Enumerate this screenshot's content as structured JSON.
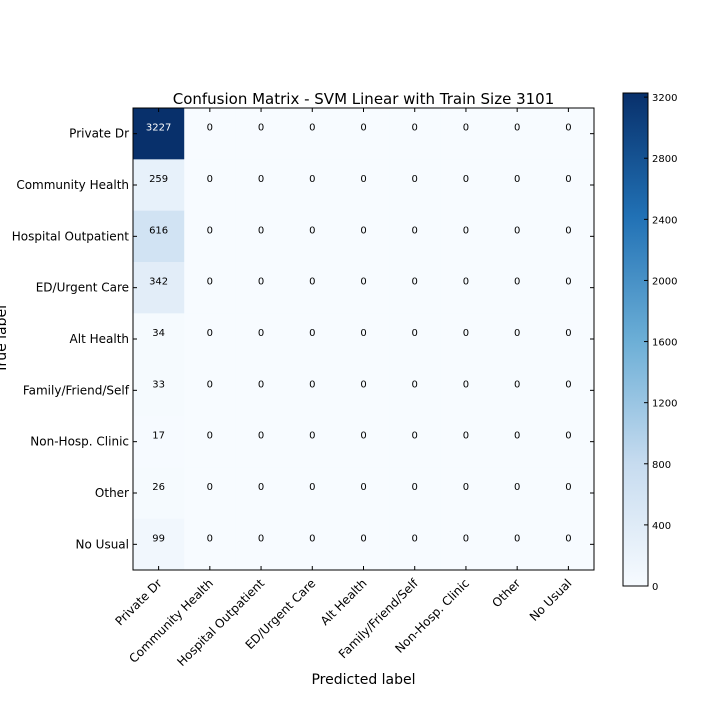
{
  "chart_data": {
    "type": "heatmap",
    "title": "Confusion Matrix - SVM Linear with Train Size 3101",
    "xlabel": "Predicted label",
    "ylabel": "True label",
    "x_categories": [
      "Private Dr",
      "Community Health",
      "Hospital Outpatient",
      "ED/Urgent Care",
      "Alt Health",
      "Family/Friend/Self",
      "Non-Hosp. Clinic",
      "Other",
      "No Usual"
    ],
    "y_categories": [
      "Private Dr",
      "Community Health",
      "Hospital Outpatient",
      "ED/Urgent Care",
      "Alt Health",
      "Family/Friend/Self",
      "Non-Hosp. Clinic",
      "Other",
      "No Usual"
    ],
    "values": [
      [
        3227,
        0,
        0,
        0,
        0,
        0,
        0,
        0,
        0
      ],
      [
        259,
        0,
        0,
        0,
        0,
        0,
        0,
        0,
        0
      ],
      [
        616,
        0,
        0,
        0,
        0,
        0,
        0,
        0,
        0
      ],
      [
        342,
        0,
        0,
        0,
        0,
        0,
        0,
        0,
        0
      ],
      [
        34,
        0,
        0,
        0,
        0,
        0,
        0,
        0,
        0
      ],
      [
        33,
        0,
        0,
        0,
        0,
        0,
        0,
        0,
        0
      ],
      [
        17,
        0,
        0,
        0,
        0,
        0,
        0,
        0,
        0
      ],
      [
        26,
        0,
        0,
        0,
        0,
        0,
        0,
        0,
        0
      ],
      [
        99,
        0,
        0,
        0,
        0,
        0,
        0,
        0,
        0
      ]
    ],
    "colorbar": {
      "min": 0,
      "max": 3227,
      "ticks": [
        0,
        400,
        800,
        1200,
        1600,
        2000,
        2400,
        2800,
        3200
      ]
    },
    "colormap": "Blues",
    "colormap_low": "#f7fbff",
    "colormap_high": "#08306b",
    "text_light": "#ffffff",
    "text_dark": "#000000",
    "grid": false,
    "legend": "colorbar-right"
  }
}
